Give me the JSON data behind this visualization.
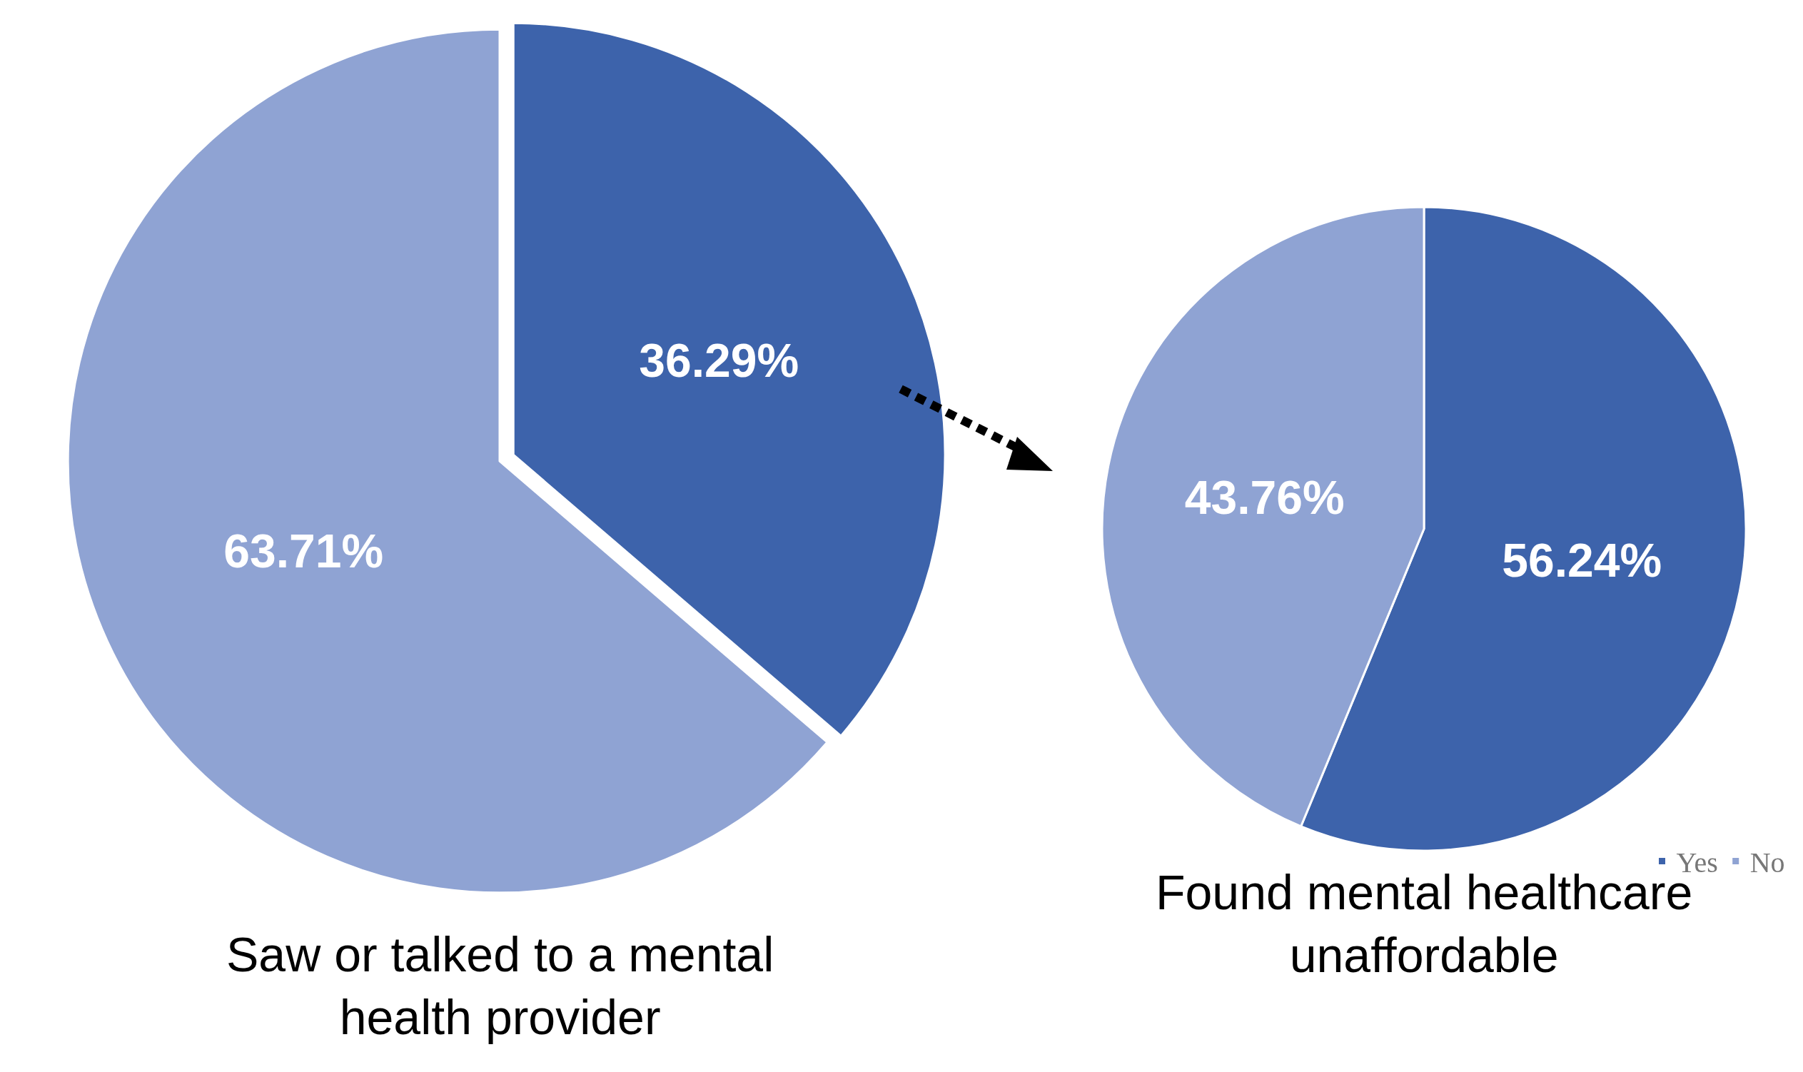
{
  "chart_data": [
    {
      "type": "pie",
      "title": "Saw or talked to a mental health provider",
      "categories": [
        null,
        null
      ],
      "values": [
        36.29,
        63.71
      ],
      "colors": [
        "#3d63ab",
        "#8fa3d3"
      ],
      "value_labels": [
        "36.29%",
        "63.71%"
      ]
    },
    {
      "type": "pie",
      "title": "Found mental healthcare unaffordable",
      "categories": [
        "Yes",
        "No"
      ],
      "values": [
        56.24,
        43.76
      ],
      "colors": [
        "#3d63ab",
        "#8fa3d3"
      ],
      "value_labels": [
        "56.24%",
        "43.76%"
      ],
      "legend": "bottom right"
    }
  ]
}
